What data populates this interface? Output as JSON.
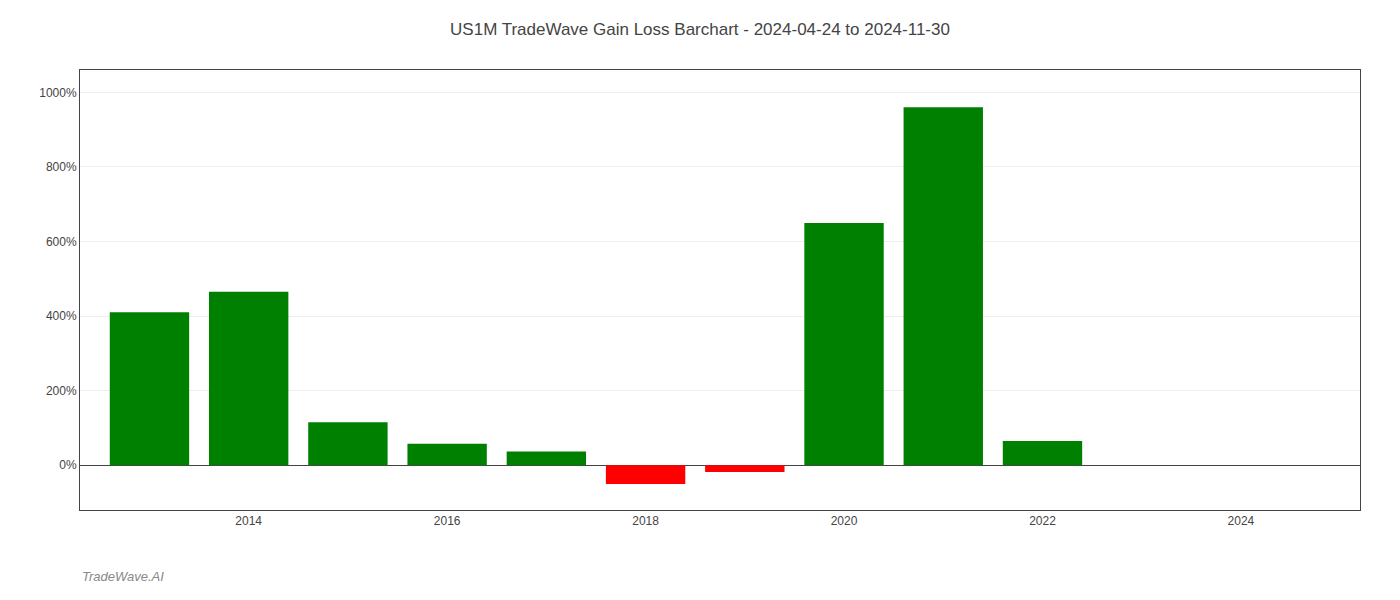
{
  "chart_data": {
    "type": "bar",
    "title": "US1M TradeWave Gain Loss Barchart - 2024-04-24 to 2024-11-30",
    "annotations": [
      "TradeWave.AI"
    ],
    "x": [
      2013,
      2014,
      2015,
      2016,
      2017,
      2018,
      2019,
      2020,
      2021,
      2022,
      2023
    ],
    "values": [
      410,
      465,
      115,
      58,
      37,
      -50,
      -18,
      650,
      960,
      65,
      0
    ],
    "colors": [
      "#008000",
      "#008000",
      "#008000",
      "#008000",
      "#008000",
      "#ff0000",
      "#ff0000",
      "#008000",
      "#008000",
      "#008000",
      "#008000"
    ],
    "xlim": [
      2012.3,
      2025.2
    ],
    "xticks": [
      2014,
      2016,
      2018,
      2020,
      2022,
      2024
    ],
    "ylim": [
      -120,
      1060
    ],
    "yticks": [
      {
        "value": 0,
        "label": "0%"
      },
      {
        "value": 200,
        "label": "200%"
      },
      {
        "value": 400,
        "label": "400%"
      },
      {
        "value": 600,
        "label": "600%"
      },
      {
        "value": 800,
        "label": "800%"
      },
      {
        "value": 1000,
        "label": "1000%"
      }
    ],
    "grid": true
  }
}
